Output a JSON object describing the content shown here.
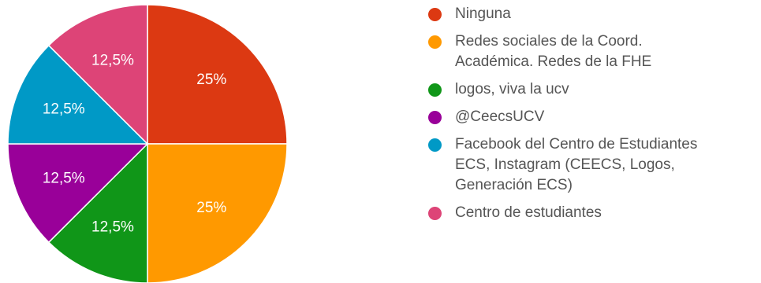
{
  "chart_data": {
    "type": "pie",
    "title": "",
    "start_angle_deg": 90,
    "direction": "clockwise",
    "slices": [
      {
        "label": "Ninguna",
        "value": 25,
        "display": "25%",
        "color": "#dc3912"
      },
      {
        "label": "Redes sociales de la Coord.\nAcadémica. Redes de la FHE",
        "value": 25,
        "display": "25%",
        "color": "#ff9900"
      },
      {
        "label": "logos, viva la ucv",
        "value": 12.5,
        "display": "12,5%",
        "color": "#109618"
      },
      {
        "label": "@CeecsUCV",
        "value": 12.5,
        "display": "12,5%",
        "color": "#990099"
      },
      {
        "label": "Facebook del Centro de Estudiantes\nECS, Instagram (CEECS, Logos,\nGeneración ECS)",
        "value": 12.5,
        "display": "12,5%",
        "color": "#0099c6"
      },
      {
        "label": "Centro de estudiantes",
        "value": 12.5,
        "display": "12,5%",
        "color": "#dd4477"
      }
    ],
    "legend_position": "right"
  }
}
